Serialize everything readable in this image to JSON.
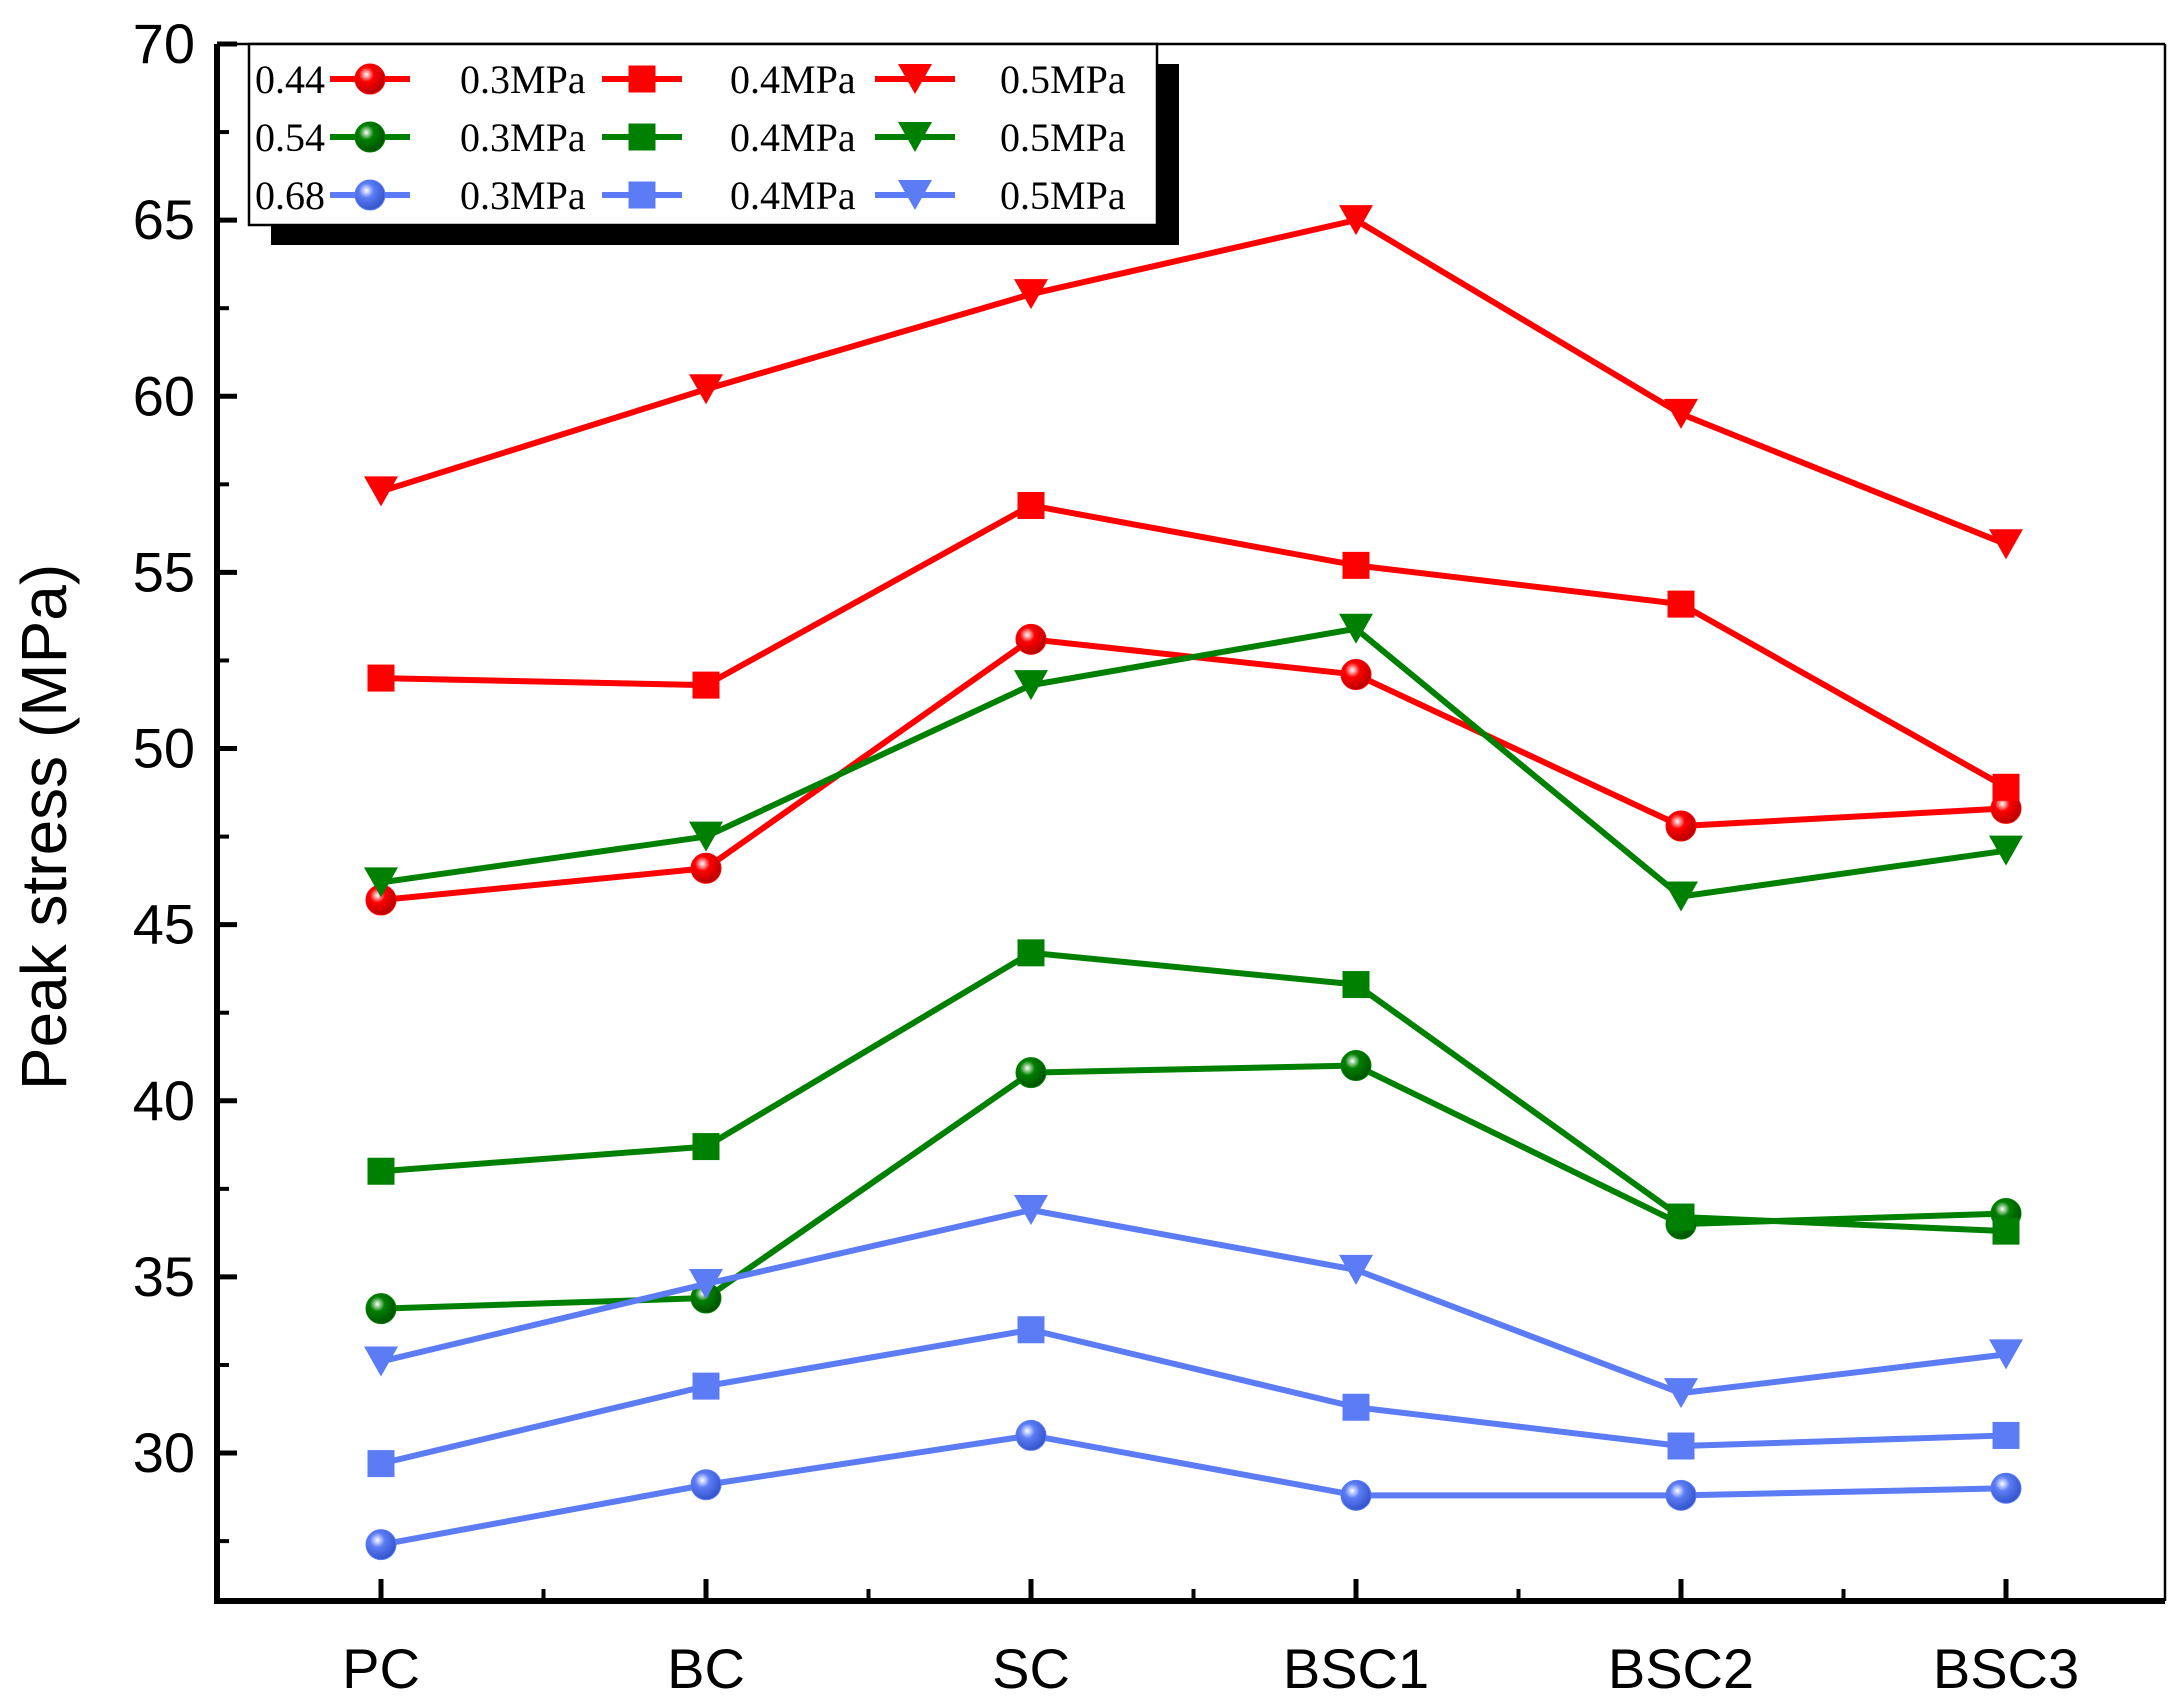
{
  "chart_data": {
    "type": "line",
    "title": "",
    "xlabel": "",
    "ylabel": "Peak stress (MPa)",
    "categories": [
      "PC",
      "BC",
      "SC",
      "BSC1",
      "BSC2",
      "BSC3"
    ],
    "yticks": [
      "30",
      "35",
      "40",
      "45",
      "50",
      "55",
      "60",
      "65",
      "70"
    ],
    "ylim": [
      25.8,
      70
    ],
    "grid": false,
    "legend_position": "top-left",
    "legend": {
      "rows": [
        {
          "group": "0.44",
          "entries": [
            "0.3MPa",
            "0.4MPa",
            "0.5MPa"
          ]
        },
        {
          "group": "0.54",
          "entries": [
            "0.3MPa",
            "0.4MPa",
            "0.5MPa"
          ]
        },
        {
          "group": "0.68",
          "entries": [
            "0.3MPa",
            "0.4MPa",
            "0.5MPa"
          ]
        }
      ]
    },
    "colors": {
      "0.44": "#ff0000",
      "0.54": "#008000",
      "0.68": "#5b7cf4"
    },
    "series": [
      {
        "name": "0.44 0.3MPa",
        "group": "0.44",
        "marker": "circle",
        "values": [
          45.7,
          46.6,
          53.1,
          52.1,
          47.8,
          48.3
        ]
      },
      {
        "name": "0.44 0.4MPa",
        "group": "0.44",
        "marker": "square",
        "values": [
          52.0,
          51.8,
          56.9,
          55.2,
          54.1,
          48.9
        ]
      },
      {
        "name": "0.44 0.5MPa",
        "group": "0.44",
        "marker": "triangle",
        "values": [
          57.3,
          60.2,
          62.9,
          65.0,
          59.5,
          55.8
        ]
      },
      {
        "name": "0.54 0.3MPa",
        "group": "0.54",
        "marker": "circle",
        "values": [
          34.1,
          34.4,
          40.8,
          41.0,
          36.5,
          36.8
        ]
      },
      {
        "name": "0.54 0.4MPa",
        "group": "0.54",
        "marker": "square",
        "values": [
          38.0,
          38.7,
          44.2,
          43.3,
          36.7,
          36.3
        ]
      },
      {
        "name": "0.54 0.5MPa",
        "group": "0.54",
        "marker": "triangle",
        "values": [
          46.2,
          47.5,
          51.8,
          53.4,
          45.8,
          47.1
        ]
      },
      {
        "name": "0.68 0.3MPa",
        "group": "0.68",
        "marker": "circle",
        "values": [
          27.4,
          29.1,
          30.5,
          28.8,
          28.8,
          29.0
        ]
      },
      {
        "name": "0.68 0.4MPa",
        "group": "0.68",
        "marker": "square",
        "values": [
          29.7,
          31.9,
          33.5,
          31.3,
          30.2,
          30.5
        ]
      },
      {
        "name": "0.68 0.5MPa",
        "group": "0.68",
        "marker": "triangle",
        "values": [
          32.6,
          34.8,
          36.9,
          35.2,
          31.7,
          32.8
        ]
      }
    ]
  }
}
